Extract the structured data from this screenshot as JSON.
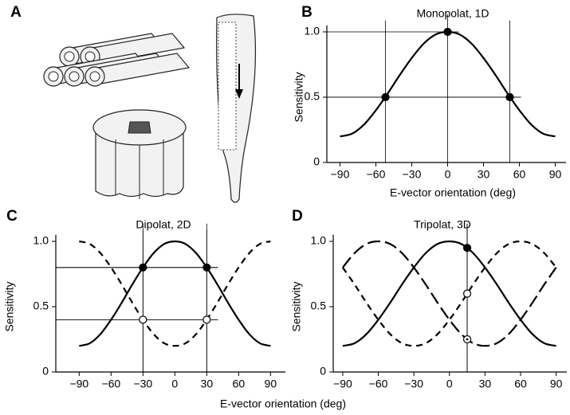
{
  "illustration": {
    "label": "A"
  },
  "shared_xlabel": "E-vector orientation (deg)",
  "chart_data": [
    {
      "type": "line",
      "panel_label": "B",
      "title": "Monopolat, 1D",
      "xlabel": "E-vector orientation (deg)",
      "ylabel": "Sensitivity",
      "x": [
        -90,
        -80,
        -70,
        -60,
        -50,
        -40,
        -30,
        -20,
        -10,
        0,
        10,
        20,
        30,
        40,
        50,
        60,
        70,
        80,
        90
      ],
      "series": [
        {
          "color": "#000000",
          "dash": "solid",
          "values": [
            0.2,
            0.22,
            0.29,
            0.4,
            0.53,
            0.67,
            0.8,
            0.91,
            0.98,
            1,
            0.98,
            0.91,
            0.8,
            0.67,
            0.53,
            0.4,
            0.29,
            0.22,
            0.2
          ]
        }
      ],
      "points": {
        "x": [
          -52,
          0,
          52
        ],
        "values": [
          0.5,
          1,
          0.5
        ],
        "styles": [
          "filled",
          "filled",
          "filled"
        ]
      },
      "guides": "both",
      "xlim": [
        -101,
        99
      ],
      "ylim": [
        0,
        1.05
      ],
      "xticks": [
        {
          "value": -90,
          "label": "−90"
        },
        {
          "value": -60,
          "label": "−60"
        },
        {
          "value": -30,
          "label": "−30"
        },
        0,
        30,
        60,
        90
      ],
      "yticks": [
        0,
        0.5,
        {
          "value": 1,
          "label": "1.0"
        }
      ]
    },
    {
      "type": "line",
      "panel_label": "C",
      "title": "Dipolat, 2D",
      "ylabel": "Sensitivity",
      "x": [
        -90,
        -80,
        -70,
        -60,
        -50,
        -40,
        -30,
        -20,
        -10,
        0,
        10,
        20,
        30,
        40,
        50,
        60,
        70,
        80,
        90
      ],
      "series": [
        {
          "color": "#000000",
          "dash": "solid",
          "values": [
            0.2,
            0.22,
            0.29,
            0.4,
            0.53,
            0.67,
            0.8,
            0.91,
            0.98,
            1,
            0.98,
            0.91,
            0.8,
            0.67,
            0.53,
            0.4,
            0.29,
            0.22,
            0.2
          ]
        },
        {
          "color": "#000000",
          "dash": "dashed",
          "values": [
            1,
            0.98,
            0.91,
            0.8,
            0.67,
            0.53,
            0.4,
            0.29,
            0.22,
            0.2,
            0.22,
            0.29,
            0.4,
            0.53,
            0.67,
            0.8,
            0.91,
            0.98,
            1
          ]
        }
      ],
      "points": {
        "x": [
          -30,
          30,
          -30,
          30
        ],
        "values": [
          0.8,
          0.8,
          0.4,
          0.4
        ],
        "styles": [
          "filled",
          "filled",
          "open",
          "open"
        ]
      },
      "guides": "both",
      "xlim": [
        -112,
        104
      ],
      "ylim": [
        0,
        1.05
      ],
      "xticks": [
        {
          "value": -90,
          "label": "−90"
        },
        {
          "value": -60,
          "label": "−60"
        },
        {
          "value": -30,
          "label": "−30"
        },
        0,
        30,
        60,
        90
      ],
      "yticks": [
        0,
        0.5,
        {
          "value": 1,
          "label": "1.0"
        }
      ]
    },
    {
      "type": "line",
      "panel_label": "D",
      "title": "Tripolat, 3D",
      "ylabel": "Sensitivity",
      "x": [
        -90,
        -80,
        -70,
        -60,
        -50,
        -40,
        -30,
        -20,
        -10,
        0,
        10,
        20,
        30,
        40,
        50,
        60,
        70,
        80,
        90
      ],
      "series": [
        {
          "color": "#000000",
          "dash": "solid",
          "values": [
            0.2,
            0.22,
            0.29,
            0.4,
            0.53,
            0.67,
            0.8,
            0.91,
            0.98,
            1,
            0.98,
            0.91,
            0.8,
            0.67,
            0.53,
            0.4,
            0.29,
            0.22,
            0.2
          ]
        },
        {
          "color": "#000000",
          "dash": "long-dashed",
          "values": [
            0.8,
            0.91,
            0.98,
            1,
            0.98,
            0.91,
            0.8,
            0.67,
            0.53,
            0.4,
            0.29,
            0.22,
            0.2,
            0.22,
            0.29,
            0.4,
            0.53,
            0.67,
            0.8
          ]
        },
        {
          "color": "#000000",
          "dash": "dashed",
          "values": [
            0.8,
            0.67,
            0.53,
            0.4,
            0.29,
            0.22,
            0.2,
            0.22,
            0.29,
            0.4,
            0.53,
            0.67,
            0.8,
            0.91,
            0.98,
            1,
            0.98,
            0.91,
            0.8
          ]
        }
      ],
      "points": {
        "x": [
          15,
          15,
          15
        ],
        "values": [
          0.95,
          0.6,
          0.25
        ],
        "styles": [
          "filled",
          "open",
          "dotted"
        ]
      },
      "guides": "vertical",
      "xlim": [
        -98,
        99
      ],
      "ylim": [
        0,
        1.05
      ],
      "xticks": [
        {
          "value": -90,
          "label": "−90"
        },
        {
          "value": -60,
          "label": "−60"
        },
        {
          "value": -30,
          "label": "−30"
        },
        0,
        30,
        60,
        90
      ],
      "yticks": [
        0,
        0.5,
        {
          "value": 1,
          "label": "1.0"
        }
      ]
    }
  ]
}
